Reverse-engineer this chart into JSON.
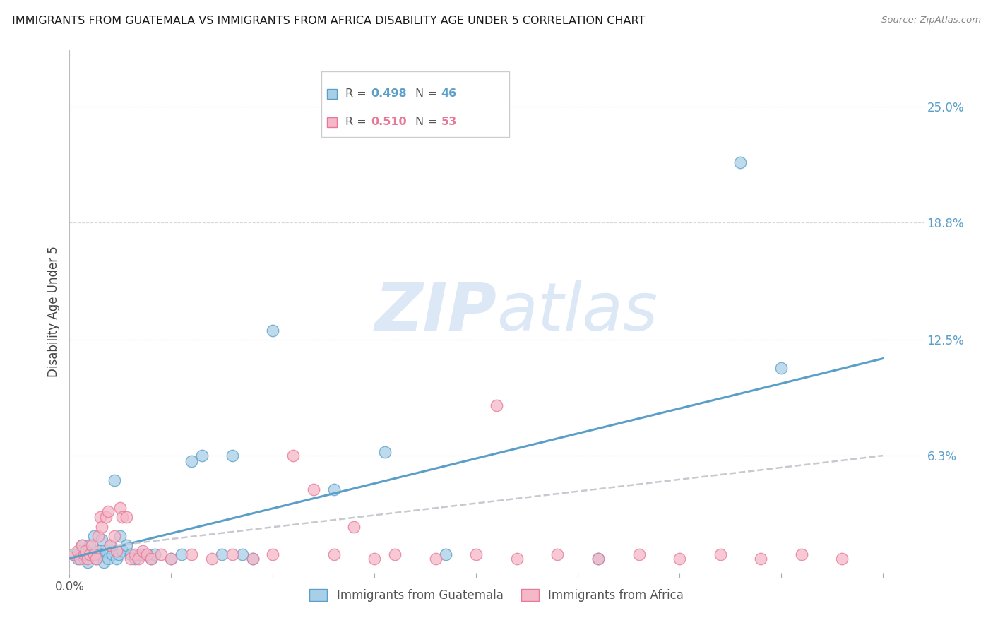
{
  "title": "IMMIGRANTS FROM GUATEMALA VS IMMIGRANTS FROM AFRICA DISABILITY AGE UNDER 5 CORRELATION CHART",
  "source": "Source: ZipAtlas.com",
  "ylabel": "Disability Age Under 5",
  "xlim": [
    0.0,
    0.42
  ],
  "ylim": [
    0.0,
    0.28
  ],
  "xtick_vals": [
    0.0,
    0.05,
    0.1,
    0.15,
    0.2,
    0.25,
    0.3,
    0.35,
    0.4
  ],
  "xtick_labels_show": {
    "0.0": "0.0%"
  },
  "ytick_vals": [
    0.063,
    0.125,
    0.188,
    0.25
  ],
  "ytick_labels": [
    "6.3%",
    "12.5%",
    "18.8%",
    "25.0%"
  ],
  "legend_r1": "R = 0.498",
  "legend_n1": "N = 46",
  "legend_r2": "R = 0.510",
  "legend_n2": "N = 53",
  "color_blue_fill": "#a8cfe8",
  "color_blue_edge": "#5b9fc9",
  "color_pink_fill": "#f5b8c8",
  "color_pink_edge": "#e87898",
  "color_trend_blue": "#5b9fc9",
  "color_trend_pink": "#c8c8d0",
  "watermark_color": "#dce8f5",
  "background_color": "#ffffff",
  "grid_color": "#d8d8d8",
  "series1_x": [
    0.002,
    0.004,
    0.005,
    0.006,
    0.007,
    0.008,
    0.009,
    0.01,
    0.011,
    0.012,
    0.013,
    0.014,
    0.015,
    0.016,
    0.017,
    0.018,
    0.019,
    0.02,
    0.021,
    0.022,
    0.023,
    0.024,
    0.025,
    0.026,
    0.028,
    0.03,
    0.032,
    0.035,
    0.038,
    0.04,
    0.042,
    0.05,
    0.055,
    0.06,
    0.065,
    0.075,
    0.08,
    0.085,
    0.09,
    0.1,
    0.13,
    0.155,
    0.185,
    0.26,
    0.33,
    0.35
  ],
  "series1_y": [
    0.01,
    0.008,
    0.01,
    0.015,
    0.008,
    0.012,
    0.006,
    0.015,
    0.01,
    0.02,
    0.008,
    0.012,
    0.01,
    0.018,
    0.006,
    0.012,
    0.008,
    0.015,
    0.01,
    0.05,
    0.008,
    0.01,
    0.02,
    0.012,
    0.015,
    0.01,
    0.008,
    0.01,
    0.01,
    0.008,
    0.01,
    0.008,
    0.01,
    0.06,
    0.063,
    0.01,
    0.063,
    0.01,
    0.008,
    0.13,
    0.045,
    0.065,
    0.01,
    0.008,
    0.22,
    0.11
  ],
  "series2_x": [
    0.002,
    0.004,
    0.005,
    0.006,
    0.007,
    0.008,
    0.009,
    0.01,
    0.011,
    0.012,
    0.013,
    0.014,
    0.015,
    0.016,
    0.018,
    0.019,
    0.02,
    0.022,
    0.023,
    0.025,
    0.026,
    0.028,
    0.03,
    0.032,
    0.034,
    0.036,
    0.038,
    0.04,
    0.045,
    0.05,
    0.06,
    0.07,
    0.08,
    0.09,
    0.1,
    0.11,
    0.12,
    0.13,
    0.14,
    0.15,
    0.16,
    0.18,
    0.2,
    0.21,
    0.22,
    0.24,
    0.26,
    0.28,
    0.3,
    0.32,
    0.34,
    0.36,
    0.38
  ],
  "series2_y": [
    0.01,
    0.012,
    0.008,
    0.015,
    0.01,
    0.012,
    0.008,
    0.01,
    0.015,
    0.01,
    0.008,
    0.02,
    0.03,
    0.025,
    0.03,
    0.033,
    0.015,
    0.02,
    0.012,
    0.035,
    0.03,
    0.03,
    0.008,
    0.01,
    0.008,
    0.012,
    0.01,
    0.008,
    0.01,
    0.008,
    0.01,
    0.008,
    0.01,
    0.008,
    0.01,
    0.063,
    0.045,
    0.01,
    0.025,
    0.008,
    0.01,
    0.008,
    0.01,
    0.09,
    0.008,
    0.01,
    0.008,
    0.01,
    0.008,
    0.01,
    0.008,
    0.01,
    0.008
  ],
  "trend1_x_start": 0.0,
  "trend1_x_end": 0.4,
  "trend1_y_start": 0.008,
  "trend1_y_end": 0.115,
  "trend2_x_start": 0.0,
  "trend2_x_end": 0.4,
  "trend2_y_start": 0.012,
  "trend2_y_end": 0.063
}
